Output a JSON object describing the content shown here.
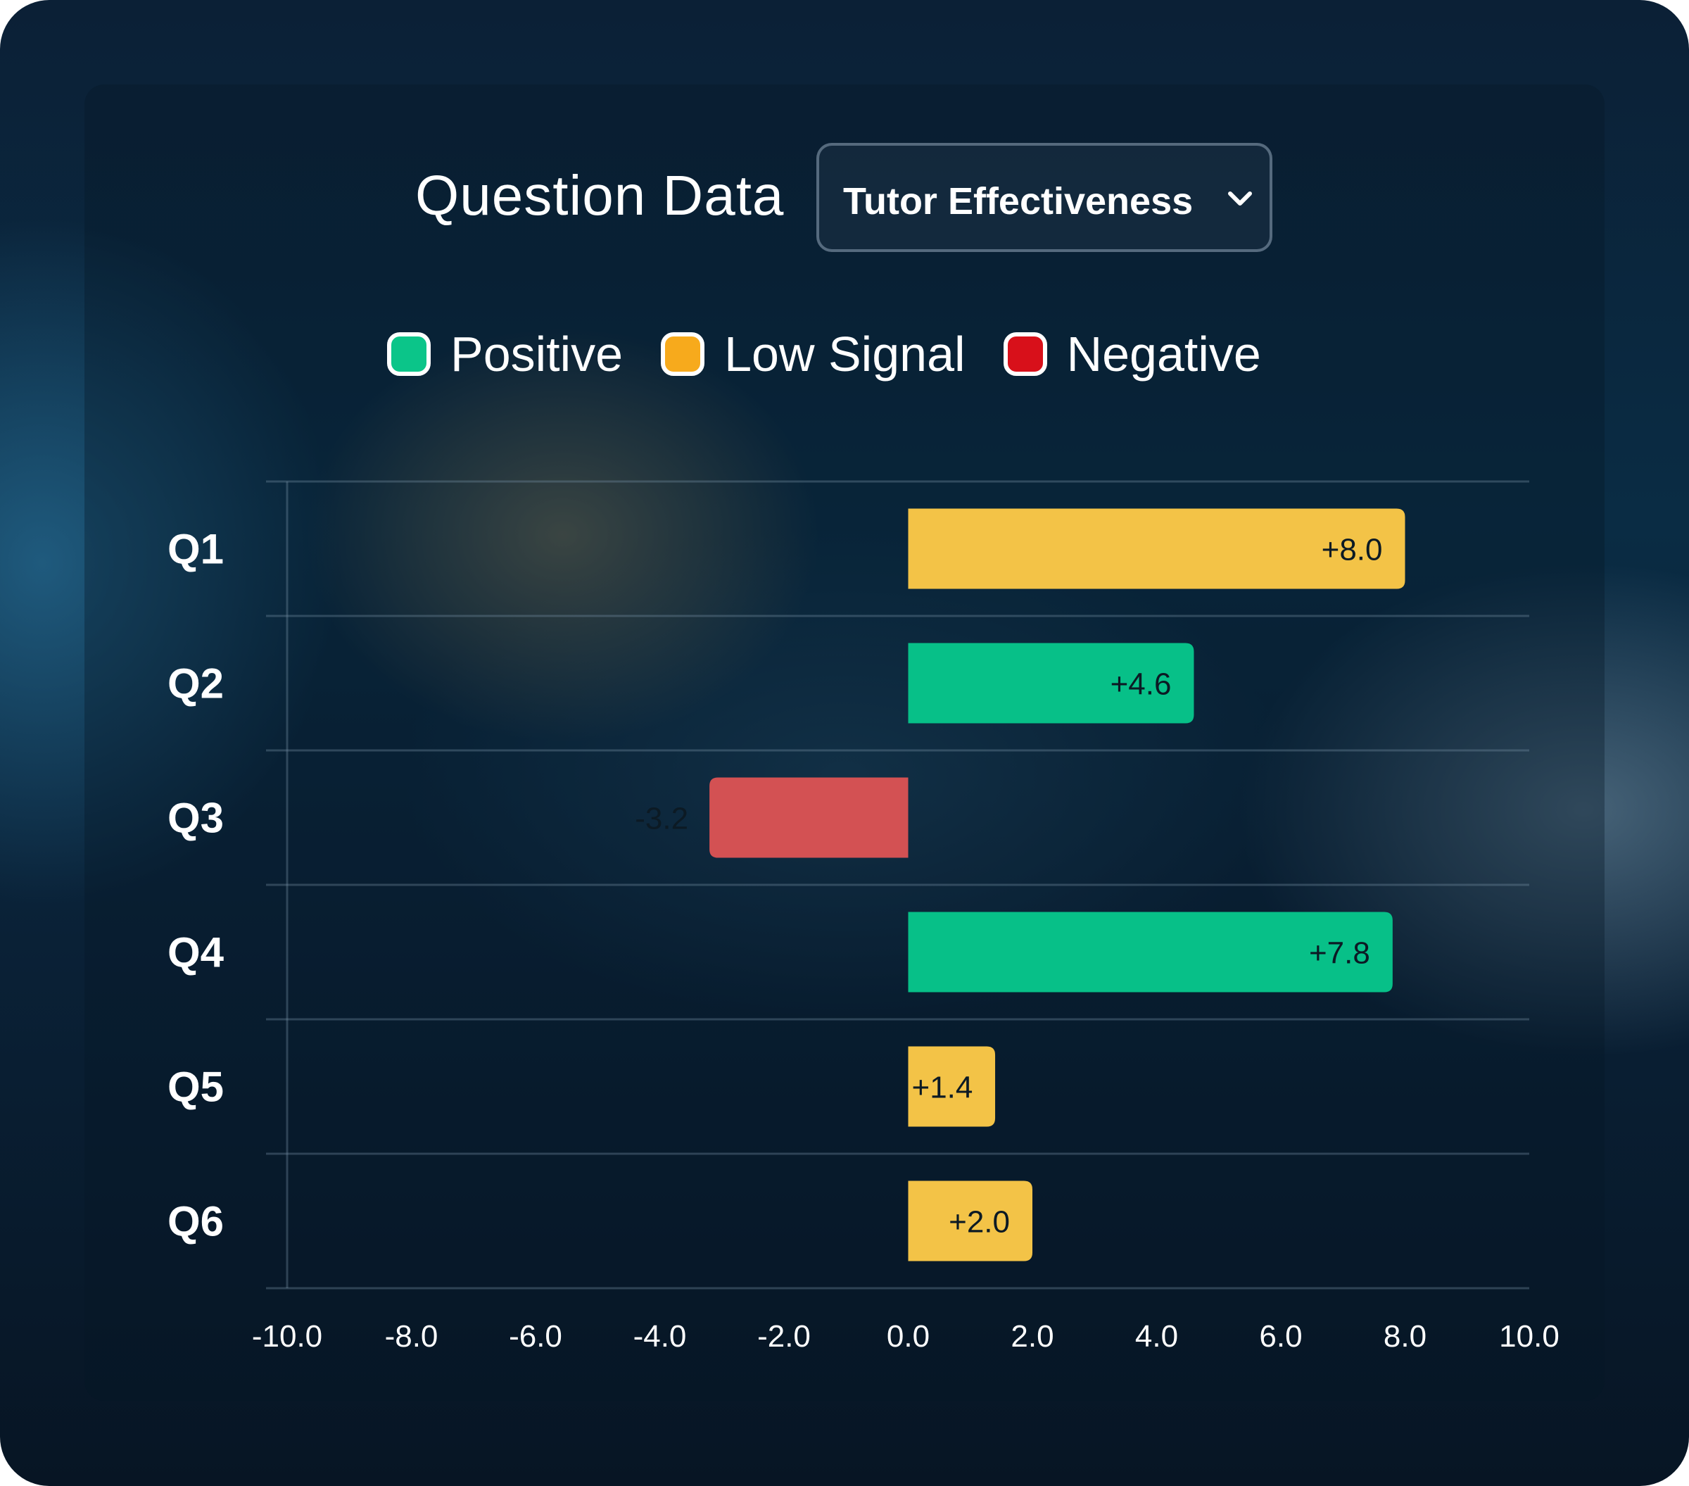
{
  "header": {
    "title": "Question Data",
    "dropdown": {
      "selected": "Tutor Effectiveness",
      "icon": "chevron-down-icon"
    }
  },
  "legend": [
    {
      "label": "Positive",
      "color": "#0bc589"
    },
    {
      "label": "Low Signal",
      "color": "#f7aa1c"
    },
    {
      "label": "Negative",
      "color": "#d8101a"
    }
  ],
  "colors": {
    "positive": "#07c088",
    "low_signal": "#f3c347",
    "negative": "#d35153"
  },
  "chart_data": {
    "type": "bar",
    "orientation": "horizontal",
    "categories": [
      "Q1",
      "Q2",
      "Q3",
      "Q4",
      "Q5",
      "Q6"
    ],
    "values": [
      8.0,
      4.6,
      -3.2,
      7.8,
      1.4,
      2.0
    ],
    "value_labels": [
      "+8.0",
      "+4.6",
      "-3.2",
      "+7.8",
      "+1.4",
      "+2.0"
    ],
    "signal": [
      "Low Signal",
      "Positive",
      "Negative",
      "Positive",
      "Low Signal",
      "Low Signal"
    ],
    "xlim": [
      -10,
      10
    ],
    "x_ticks": [
      "-10.0",
      "-8.0",
      "-6.0",
      "-4.0",
      "-2.0",
      "0.0",
      "2.0",
      "4.0",
      "6.0",
      "8.0",
      "10.0"
    ],
    "grid": "horizontal",
    "legend_position": "top-center"
  }
}
